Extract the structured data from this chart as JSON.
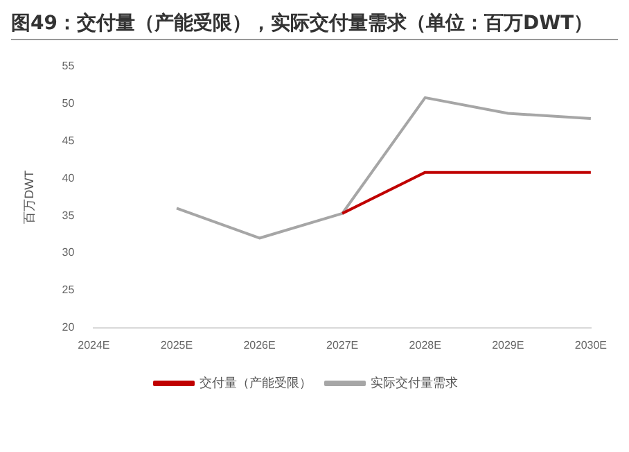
{
  "chart_data": {
    "type": "line",
    "title": "图49：交付量（产能受限），实际交付量需求（单位：百万DWT）",
    "ylabel": "百万DWT",
    "categories": [
      "2024E",
      "2025E",
      "2026E",
      "2027E",
      "2028E",
      "2029E",
      "2030E"
    ],
    "series": [
      {
        "name": "交付量（产能受限）",
        "color": "#c00000",
        "values": [
          null,
          null,
          null,
          35.3,
          40.8,
          40.8,
          40.8
        ]
      },
      {
        "name": "实际交付量需求",
        "color": "#a6a6a6",
        "values": [
          null,
          36,
          32,
          35.3,
          50.8,
          48.7,
          48
        ]
      }
    ],
    "ylim": [
      20,
      55
    ],
    "yticks": [
      20,
      25,
      30,
      35,
      40,
      45,
      50,
      55
    ],
    "grid": false,
    "legend": "bottom",
    "marker": "none",
    "line_style": "solid"
  }
}
